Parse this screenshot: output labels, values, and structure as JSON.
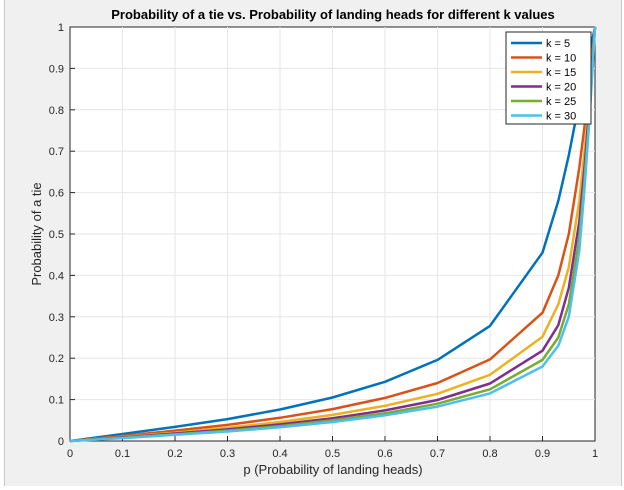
{
  "chart_data": {
    "type": "line",
    "title": "Probability of a tie vs. Probability of landing heads for different k values",
    "xlabel": "p (Probability of landing heads)",
    "ylabel": "Probability of a tie",
    "xlim": [
      0,
      1
    ],
    "ylim": [
      0,
      1
    ],
    "xticks": [
      "0",
      "0.1",
      "0.2",
      "0.3",
      "0.4",
      "0.5",
      "0.6",
      "0.7",
      "0.8",
      "0.9",
      "1"
    ],
    "yticks": [
      "0",
      "0.1",
      "0.2",
      "0.3",
      "0.4",
      "0.5",
      "0.6",
      "0.7",
      "0.8",
      "0.9",
      "1"
    ],
    "grid": true,
    "legend_position": "top-right",
    "x": [
      0,
      0.1,
      0.2,
      0.3,
      0.4,
      0.5,
      0.6,
      0.7,
      0.8,
      0.9,
      0.93,
      0.95,
      0.97,
      0.98,
      0.99,
      1
    ],
    "series": [
      {
        "name": "k = 5",
        "color": "#0072BD",
        "values": [
          0,
          0.017,
          0.034,
          0.053,
          0.076,
          0.105,
          0.143,
          0.196,
          0.278,
          0.455,
          0.58,
          0.69,
          0.82,
          0.88,
          0.94,
          1
        ]
      },
      {
        "name": "k = 10",
        "color": "#D95319",
        "values": [
          0,
          0.012,
          0.025,
          0.039,
          0.056,
          0.077,
          0.104,
          0.14,
          0.197,
          0.31,
          0.4,
          0.5,
          0.66,
          0.76,
          0.87,
          1
        ]
      },
      {
        "name": "k = 15",
        "color": "#EDB120",
        "values": [
          0,
          0.01,
          0.02,
          0.032,
          0.046,
          0.063,
          0.085,
          0.114,
          0.16,
          0.252,
          0.33,
          0.42,
          0.58,
          0.7,
          0.84,
          1
        ]
      },
      {
        "name": "k = 20",
        "color": "#7E2F8E",
        "values": [
          0,
          0.009,
          0.018,
          0.028,
          0.04,
          0.055,
          0.074,
          0.099,
          0.139,
          0.218,
          0.28,
          0.37,
          0.53,
          0.66,
          0.82,
          1
        ]
      },
      {
        "name": "k = 25",
        "color": "#77AC30",
        "values": [
          0,
          0.008,
          0.016,
          0.025,
          0.036,
          0.05,
          0.067,
          0.09,
          0.125,
          0.196,
          0.25,
          0.33,
          0.49,
          0.63,
          0.8,
          1
        ]
      },
      {
        "name": "k = 30",
        "color": "#4DBEEE",
        "values": [
          0,
          0.007,
          0.015,
          0.023,
          0.033,
          0.046,
          0.062,
          0.083,
          0.115,
          0.18,
          0.23,
          0.3,
          0.46,
          0.61,
          0.79,
          1
        ]
      }
    ]
  }
}
